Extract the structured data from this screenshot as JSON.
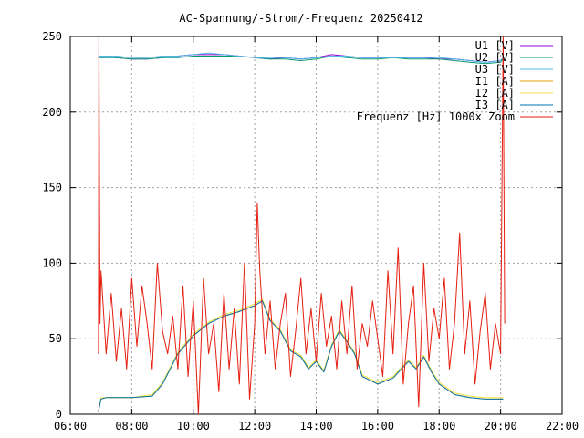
{
  "chart_data": {
    "type": "line",
    "title": "AC-Spannung/-Strom/-Frequenz 20250412",
    "xlabel": "",
    "ylabel": "",
    "xlim": [
      "06:00",
      "22:00"
    ],
    "ylim": [
      0,
      250
    ],
    "x_ticks": [
      "06:00",
      "08:00",
      "10:00",
      "12:00",
      "14:00",
      "16:00",
      "18:00",
      "20:00",
      "22:00"
    ],
    "y_ticks": [
      "0",
      "50",
      "100",
      "150",
      "200",
      "250"
    ],
    "grid": true,
    "legend_position": "top-right",
    "series": [
      {
        "name": "U1 [V]",
        "color": "#9400d3",
        "x": [
          "06:55",
          "07:30",
          "08:00",
          "08:30",
          "09:00",
          "09:30",
          "10:00",
          "10:30",
          "11:00",
          "11:30",
          "12:00",
          "12:30",
          "13:00",
          "13:30",
          "14:00",
          "14:30",
          "15:00",
          "15:30",
          "16:00",
          "16:30",
          "17:00",
          "17:30",
          "18:00",
          "18:30",
          "19:00",
          "19:30",
          "20:00",
          "20:05"
        ],
        "values": [
          237,
          236,
          235,
          235,
          236,
          237,
          238,
          238,
          238,
          237,
          236,
          235,
          236,
          235,
          236,
          238,
          237,
          236,
          236,
          236,
          236,
          236,
          235,
          235,
          234,
          233,
          234,
          236
        ]
      },
      {
        "name": "U2 [V]",
        "color": "#009e73",
        "x": [
          "06:55",
          "07:30",
          "08:00",
          "08:30",
          "09:00",
          "09:30",
          "10:00",
          "10:30",
          "11:00",
          "11:30",
          "12:00",
          "12:30",
          "13:00",
          "13:30",
          "14:00",
          "14:30",
          "15:00",
          "15:30",
          "16:00",
          "16:30",
          "17:00",
          "17:30",
          "18:00",
          "18:30",
          "19:00",
          "19:30",
          "20:00",
          "20:05"
        ],
        "values": [
          236,
          236,
          235,
          235,
          236,
          236,
          237,
          237,
          237,
          237,
          236,
          235,
          235,
          234,
          235,
          237,
          236,
          235,
          235,
          236,
          235,
          235,
          235,
          234,
          233,
          232,
          233,
          235
        ]
      },
      {
        "name": "U3 [V]",
        "color": "#56b4e9",
        "x": [
          "06:55",
          "07:30",
          "08:00",
          "08:30",
          "09:00",
          "09:30",
          "10:00",
          "10:30",
          "11:00",
          "11:30",
          "12:00",
          "12:30",
          "13:00",
          "13:30",
          "14:00",
          "14:30",
          "15:00",
          "15:30",
          "16:00",
          "16:30",
          "17:00",
          "17:30",
          "18:00",
          "18:30",
          "19:00",
          "19:30",
          "20:00",
          "20:05"
        ],
        "values": [
          237,
          237,
          236,
          236,
          237,
          237,
          238,
          239,
          238,
          237,
          236,
          236,
          236,
          235,
          236,
          237,
          237,
          236,
          236,
          236,
          236,
          236,
          236,
          235,
          234,
          233,
          234,
          236
        ]
      },
      {
        "name": "I1 [A]",
        "color": "#e69f00",
        "x": [
          "06:55",
          "07:00",
          "07:10",
          "08:00",
          "08:40",
          "09:00",
          "09:30",
          "10:00",
          "10:30",
          "11:00",
          "11:30",
          "12:00",
          "12:15",
          "12:30",
          "12:50",
          "13:10",
          "13:30",
          "13:45",
          "14:00",
          "14:15",
          "14:30",
          "14:45",
          "15:00",
          "15:15",
          "15:30",
          "16:00",
          "16:30",
          "17:00",
          "17:15",
          "17:30",
          "17:45",
          "18:00",
          "18:30",
          "19:00",
          "19:30",
          "20:00",
          "20:05"
        ],
        "values": [
          2,
          10,
          11,
          11,
          12,
          20,
          40,
          52,
          60,
          65,
          68,
          72,
          75,
          62,
          55,
          42,
          38,
          30,
          35,
          28,
          45,
          55,
          48,
          40,
          25,
          20,
          24,
          35,
          30,
          38,
          28,
          20,
          13,
          11,
          10,
          10,
          10
        ]
      },
      {
        "name": "I2 [A]",
        "color": "#f0e442",
        "x": [
          "06:55",
          "07:00",
          "07:10",
          "08:00",
          "08:40",
          "09:00",
          "09:30",
          "10:00",
          "10:30",
          "11:00",
          "11:30",
          "12:00",
          "12:15",
          "12:30",
          "12:50",
          "13:10",
          "13:30",
          "13:45",
          "14:00",
          "14:15",
          "14:30",
          "14:45",
          "15:00",
          "15:15",
          "15:30",
          "16:00",
          "16:30",
          "17:00",
          "17:15",
          "17:30",
          "17:45",
          "18:00",
          "18:30",
          "19:00",
          "19:30",
          "20:00",
          "20:05"
        ],
        "values": [
          2,
          11,
          11,
          11,
          13,
          21,
          41,
          53,
          61,
          66,
          69,
          73,
          76,
          63,
          56,
          43,
          39,
          31,
          36,
          29,
          46,
          56,
          49,
          41,
          26,
          21,
          25,
          36,
          31,
          39,
          29,
          21,
          14,
          12,
          11,
          11,
          11
        ]
      },
      {
        "name": "I3 [A]",
        "color": "#0072b2",
        "x": [
          "06:55",
          "07:00",
          "07:10",
          "08:00",
          "08:40",
          "09:00",
          "09:30",
          "10:00",
          "10:30",
          "11:00",
          "11:30",
          "12:00",
          "12:15",
          "12:30",
          "12:50",
          "13:10",
          "13:30",
          "13:45",
          "14:00",
          "14:15",
          "14:30",
          "14:45",
          "15:00",
          "15:15",
          "15:30",
          "16:00",
          "16:30",
          "17:00",
          "17:15",
          "17:30",
          "17:45",
          "18:00",
          "18:30",
          "19:00",
          "19:30",
          "20:00",
          "20:05"
        ],
        "values": [
          2,
          10,
          11,
          11,
          12,
          20,
          40,
          52,
          60,
          65,
          68,
          72,
          75,
          62,
          55,
          42,
          38,
          30,
          35,
          28,
          45,
          55,
          48,
          40,
          25,
          20,
          24,
          35,
          30,
          38,
          28,
          20,
          13,
          11,
          10,
          10,
          10
        ]
      },
      {
        "name": "Frequenz [Hz] 1000x Zoom",
        "color": "#e51e10",
        "x": [
          "06:55",
          "06:56",
          "06:58",
          "07:00",
          "07:10",
          "07:20",
          "07:30",
          "07:40",
          "07:50",
          "08:00",
          "08:10",
          "08:20",
          "08:30",
          "08:40",
          "08:50",
          "09:00",
          "09:10",
          "09:20",
          "09:30",
          "09:40",
          "09:50",
          "10:00",
          "10:10",
          "10:20",
          "10:30",
          "10:40",
          "10:50",
          "11:00",
          "11:10",
          "11:20",
          "11:30",
          "11:40",
          "11:50",
          "12:00",
          "12:05",
          "12:10",
          "12:20",
          "12:30",
          "12:40",
          "12:50",
          "13:00",
          "13:10",
          "13:20",
          "13:30",
          "13:40",
          "13:50",
          "14:00",
          "14:10",
          "14:20",
          "14:30",
          "14:40",
          "14:50",
          "15:00",
          "15:10",
          "15:20",
          "15:30",
          "15:40",
          "15:50",
          "16:00",
          "16:10",
          "16:20",
          "16:30",
          "16:40",
          "16:50",
          "17:00",
          "17:10",
          "17:20",
          "17:30",
          "17:40",
          "17:50",
          "18:00",
          "18:10",
          "18:20",
          "18:30",
          "18:40",
          "18:50",
          "19:00",
          "19:10",
          "19:20",
          "19:30",
          "19:40",
          "19:50",
          "20:00",
          "20:05",
          "20:08"
        ],
        "values": [
          40,
          250,
          60,
          95,
          40,
          80,
          35,
          70,
          30,
          90,
          45,
          85,
          60,
          30,
          100,
          55,
          40,
          65,
          30,
          85,
          25,
          75,
          0,
          90,
          40,
          60,
          15,
          80,
          30,
          70,
          20,
          100,
          10,
          60,
          140,
          95,
          40,
          75,
          30,
          60,
          80,
          25,
          55,
          90,
          40,
          70,
          35,
          80,
          45,
          65,
          30,
          75,
          40,
          85,
          30,
          60,
          45,
          75,
          50,
          25,
          95,
          40,
          110,
          20,
          60,
          85,
          5,
          100,
          35,
          70,
          50,
          90,
          30,
          60,
          120,
          40,
          75,
          20,
          55,
          80,
          30,
          60,
          40,
          250,
          60
        ]
      }
    ]
  }
}
